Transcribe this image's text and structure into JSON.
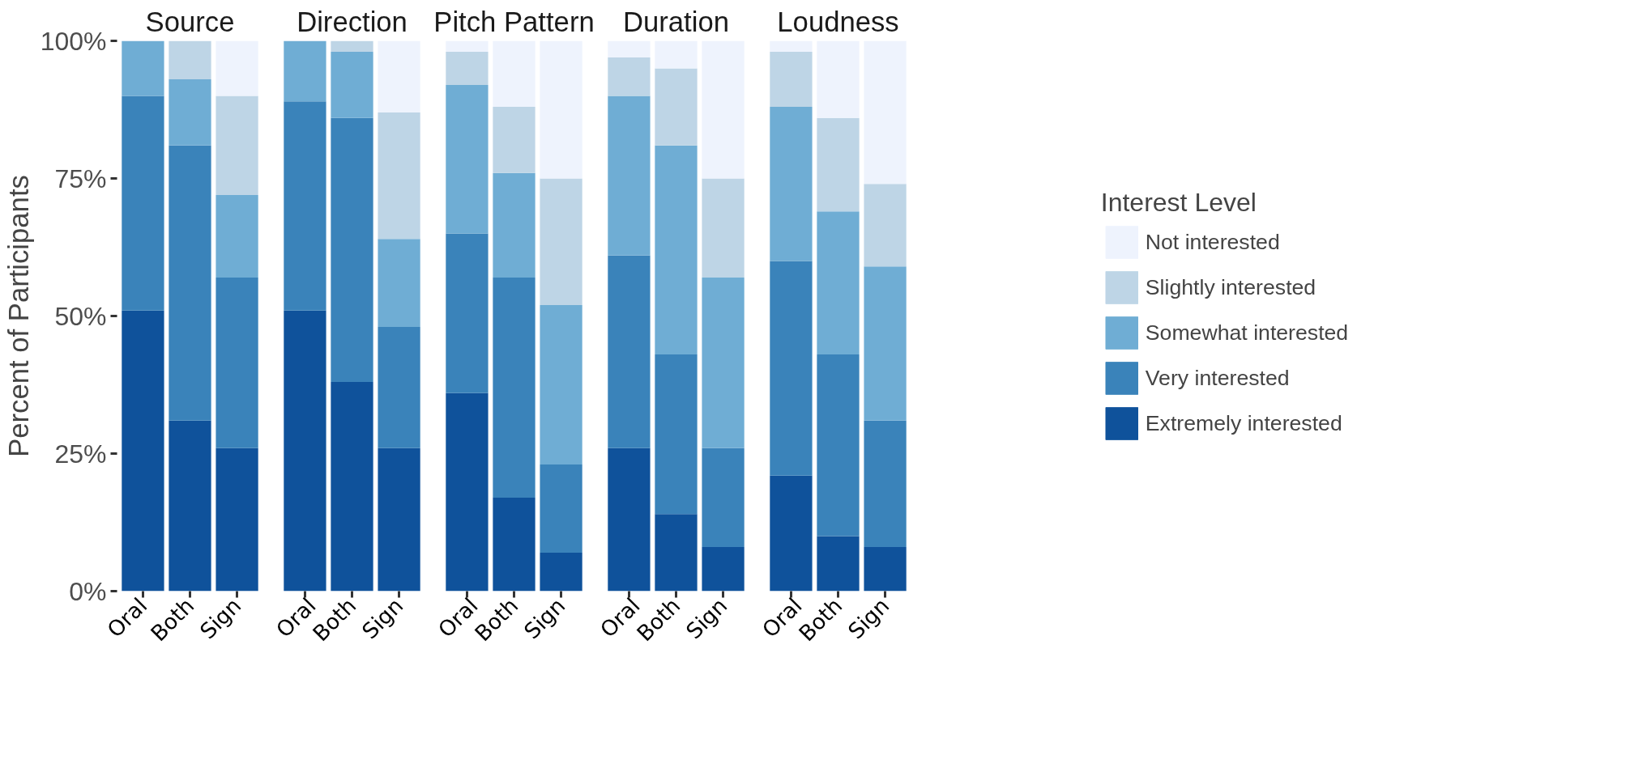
{
  "chart_data": [
    {
      "type": "bar",
      "stacked": true,
      "title": "Source",
      "ylabel": "Percent of Participants",
      "categories": [
        "Oral",
        "Both",
        "Sign"
      ],
      "ylim": [
        0,
        100
      ],
      "yticks": [
        {
          "value": 0,
          "label": "0%"
        },
        {
          "value": 25,
          "label": "25%"
        },
        {
          "value": 50,
          "label": "50%"
        },
        {
          "value": 75,
          "label": "75%"
        },
        {
          "value": 100,
          "label": "100%"
        }
      ],
      "grid": false,
      "legend": false,
      "series": [
        {
          "color": "#0f529b",
          "values": [
            51,
            31,
            26
          ]
        },
        {
          "color": "#3a83ba",
          "values": [
            39,
            50,
            31
          ]
        },
        {
          "color": "#6fadd4",
          "values": [
            10,
            12,
            15
          ]
        },
        {
          "color": "#bed5e6",
          "values": [
            0,
            7,
            18
          ]
        },
        {
          "color": "#eef3fd",
          "values": [
            0,
            0,
            10
          ]
        }
      ]
    },
    {
      "type": "bar",
      "stacked": true,
      "title": "Direction",
      "categories": [
        "Oral",
        "Both",
        "Sign"
      ],
      "ylim": [
        0,
        100
      ],
      "tick_labels": "x",
      "grid": false,
      "legend": false,
      "series": [
        {
          "color": "#0f529b",
          "values": [
            51,
            38,
            26
          ]
        },
        {
          "color": "#3a83ba",
          "values": [
            38,
            48,
            22
          ]
        },
        {
          "color": "#6fadd4",
          "values": [
            11,
            12,
            16
          ]
        },
        {
          "color": "#bed5e6",
          "values": [
            0,
            2,
            23
          ]
        },
        {
          "color": "#eef3fd",
          "values": [
            0,
            0,
            13
          ]
        }
      ]
    },
    {
      "type": "bar",
      "stacked": true,
      "title": "Pitch Pattern",
      "categories": [
        "Oral",
        "Both",
        "Sign"
      ],
      "ylim": [
        0,
        100
      ],
      "tick_labels": "x",
      "grid": false,
      "legend": false,
      "series": [
        {
          "color": "#0f529b",
          "values": [
            36,
            17,
            7
          ]
        },
        {
          "color": "#3a83ba",
          "values": [
            29,
            40,
            16
          ]
        },
        {
          "color": "#6fadd4",
          "values": [
            27,
            19,
            29
          ]
        },
        {
          "color": "#bed5e6",
          "values": [
            6,
            12,
            23
          ]
        },
        {
          "color": "#eef3fd",
          "values": [
            2,
            12,
            25
          ]
        }
      ]
    },
    {
      "type": "bar",
      "stacked": true,
      "title": "Duration",
      "categories": [
        "Oral",
        "Both",
        "Sign"
      ],
      "ylim": [
        0,
        100
      ],
      "tick_labels": "x",
      "grid": false,
      "legend": false,
      "series": [
        {
          "color": "#0f529b",
          "values": [
            26,
            14,
            8
          ]
        },
        {
          "color": "#3a83ba",
          "values": [
            35,
            29,
            18
          ]
        },
        {
          "color": "#6fadd4",
          "values": [
            29,
            38,
            31
          ]
        },
        {
          "color": "#bed5e6",
          "values": [
            7,
            14,
            18
          ]
        },
        {
          "color": "#eef3fd",
          "values": [
            3,
            5,
            25
          ]
        }
      ]
    },
    {
      "type": "bar",
      "stacked": true,
      "title": "Loudness",
      "categories": [
        "Oral",
        "Both",
        "Sign"
      ],
      "ylim": [
        0,
        100
      ],
      "tick_labels": "x",
      "grid": false,
      "legend": "right",
      "legend_title": "Interest Level",
      "series": [
        {
          "name": "Extremely interested",
          "color": "#0f529b",
          "values": [
            21,
            10,
            8
          ]
        },
        {
          "name": "Very interested",
          "color": "#3a83ba",
          "values": [
            39,
            33,
            23
          ]
        },
        {
          "name": "Somewhat interested",
          "color": "#6fadd4",
          "values": [
            28,
            26,
            28
          ]
        },
        {
          "name": "Slightly interested",
          "color": "#bed5e6",
          "values": [
            10,
            17,
            15
          ]
        },
        {
          "name": "Not interested",
          "color": "#eef3fd",
          "values": [
            2,
            14,
            26
          ]
        }
      ]
    }
  ]
}
